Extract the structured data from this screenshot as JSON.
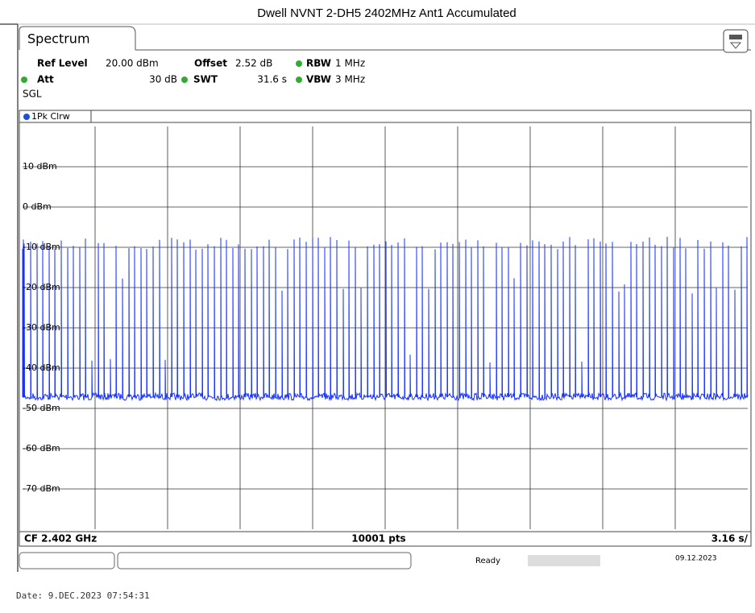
{
  "header": {
    "title": "Dwell NVNT 2-DH5 2402MHz Ant1 Accumulated"
  },
  "tab": "Spectrum",
  "settings": [
    {
      "label": "Ref Level",
      "value": "20.00 dBm"
    },
    {
      "label": "Offset",
      "value": "2.52 dB"
    },
    {
      "label": "RBW",
      "value": "1 MHz"
    },
    {
      "label": "Att",
      "value": "30 dB"
    },
    {
      "label": "SWT",
      "value": "31.6 s"
    },
    {
      "label": "VBW",
      "value": "3 MHz"
    }
  ],
  "mode": "SGL",
  "trace_label": "1Pk Clrw",
  "y_labels": [
    "10 dBm",
    "0 dBm",
    "-10 dBm",
    "-20 dBm",
    "-30 dBm",
    "-40 dBm",
    "-50 dBm",
    "-60 dBm",
    "-70 dBm"
  ],
  "footer": {
    "center_freq": "CF 2.402 GHz",
    "points": "10001 pts",
    "sweep": "3.16 s/"
  },
  "status": {
    "state": "Ready",
    "date": "09.12.2023"
  },
  "timestamp": "Date: 9.DEC.2023  07:54:31"
}
